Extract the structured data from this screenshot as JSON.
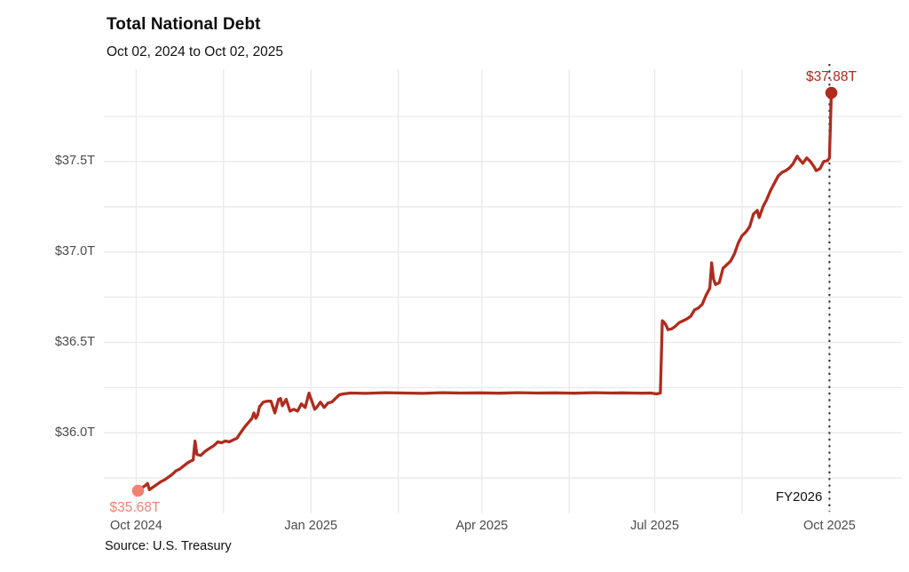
{
  "header": {
    "title": "Total National Debt",
    "subtitle": "Oct 02, 2024 to Oct 02, 2025"
  },
  "footer": {
    "source": "Source: U.S. Treasury"
  },
  "annotations": {
    "start_label": "$35.68T",
    "end_label": "$37.88T",
    "fy_label": "FY2026"
  },
  "colors": {
    "line": "#b02b1d",
    "start_accent": "#ef8372",
    "grid": "#e9e9e9",
    "marker_line": "#2a2a2a",
    "tick_text": "#4a4a4a",
    "text": "#111111"
  },
  "chart_data": {
    "type": "line",
    "title": "Total National Debt",
    "subtitle": "Oct 02, 2024 to Oct 02, 2025",
    "unit": "USD trillions",
    "x_start_date": "2024-10-02",
    "x_end_date": "2025-10-02",
    "xlim_days": [
      0,
      365
    ],
    "ylim": [
      35.55,
      38.01
    ],
    "grid": true,
    "legend": "none",
    "y_ticks": [
      {
        "value": 37.5,
        "label": "$37.5T"
      },
      {
        "value": 37.0,
        "label": "$37.0T"
      },
      {
        "value": 36.5,
        "label": "$36.5T"
      },
      {
        "value": 36.0,
        "label": "$36.0T"
      }
    ],
    "y_gridlines": [
      37.75,
      37.5,
      37.25,
      37.0,
      36.75,
      36.5,
      36.25,
      36.0,
      35.75
    ],
    "x_ticks": [
      {
        "day": -1,
        "label": "Oct 2024"
      },
      {
        "day": 91,
        "label": "Jan 2025"
      },
      {
        "day": 181,
        "label": "Apr 2025"
      },
      {
        "day": 272,
        "label": "Jul 2025"
      },
      {
        "day": 364,
        "label": "Oct 2025"
      }
    ],
    "x_gridline_days": [
      -1,
      45,
      91,
      137,
      181,
      227,
      272,
      318,
      364
    ],
    "start_point": {
      "day": 0,
      "value": 35.68,
      "label": "$35.68T",
      "color": "#ef8372"
    },
    "end_point": {
      "day": 365,
      "value": 37.88,
      "label": "$37.88T",
      "color": "#b02b1d"
    },
    "fy2026_marker": {
      "day": 364,
      "label": "FY2026",
      "style": "dotted"
    },
    "points": [
      [
        0,
        35.68
      ],
      [
        2,
        35.695
      ],
      [
        4,
        35.71
      ],
      [
        5,
        35.72
      ],
      [
        6,
        35.685
      ],
      [
        8,
        35.7
      ],
      [
        10,
        35.715
      ],
      [
        12,
        35.73
      ],
      [
        14,
        35.74
      ],
      [
        16,
        35.755
      ],
      [
        18,
        35.77
      ],
      [
        20,
        35.79
      ],
      [
        22,
        35.8
      ],
      [
        25,
        35.825
      ],
      [
        27,
        35.84
      ],
      [
        29,
        35.85
      ],
      [
        30,
        35.955
      ],
      [
        31,
        35.88
      ],
      [
        33,
        35.875
      ],
      [
        35,
        35.895
      ],
      [
        37,
        35.91
      ],
      [
        40,
        35.93
      ],
      [
        42,
        35.95
      ],
      [
        44,
        35.945
      ],
      [
        46,
        35.955
      ],
      [
        48,
        35.95
      ],
      [
        50,
        35.96
      ],
      [
        52,
        35.97
      ],
      [
        54,
        36.0
      ],
      [
        56,
        36.03
      ],
      [
        58,
        36.055
      ],
      [
        60,
        36.08
      ],
      [
        61,
        36.11
      ],
      [
        62,
        36.08
      ],
      [
        63,
        36.1
      ],
      [
        64,
        36.145
      ],
      [
        66,
        36.17
      ],
      [
        68,
        36.175
      ],
      [
        70,
        36.175
      ],
      [
        72,
        36.11
      ],
      [
        74,
        36.185
      ],
      [
        75,
        36.19
      ],
      [
        76,
        36.15
      ],
      [
        78,
        36.185
      ],
      [
        80,
        36.12
      ],
      [
        82,
        36.13
      ],
      [
        84,
        36.12
      ],
      [
        86,
        36.16
      ],
      [
        88,
        36.14
      ],
      [
        90,
        36.22
      ],
      [
        91,
        36.19
      ],
      [
        92,
        36.16
      ],
      [
        93,
        36.13
      ],
      [
        94,
        36.14
      ],
      [
        96,
        36.17
      ],
      [
        98,
        36.14
      ],
      [
        100,
        36.165
      ],
      [
        102,
        36.17
      ],
      [
        104,
        36.19
      ],
      [
        106,
        36.21
      ],
      [
        108,
        36.215
      ],
      [
        112,
        36.22
      ],
      [
        120,
        36.218
      ],
      [
        130,
        36.222
      ],
      [
        140,
        36.22
      ],
      [
        150,
        36.218
      ],
      [
        160,
        36.222
      ],
      [
        170,
        36.22
      ],
      [
        180,
        36.221
      ],
      [
        190,
        36.219
      ],
      [
        200,
        36.222
      ],
      [
        210,
        36.22
      ],
      [
        220,
        36.221
      ],
      [
        230,
        36.219
      ],
      [
        240,
        36.222
      ],
      [
        250,
        36.22
      ],
      [
        255,
        36.221
      ],
      [
        260,
        36.22
      ],
      [
        265,
        36.219
      ],
      [
        270,
        36.22
      ],
      [
        273,
        36.215
      ],
      [
        275,
        36.22
      ],
      [
        276,
        36.62
      ],
      [
        277,
        36.61
      ],
      [
        278,
        36.595
      ],
      [
        279,
        36.57
      ],
      [
        281,
        36.575
      ],
      [
        283,
        36.59
      ],
      [
        285,
        36.61
      ],
      [
        287,
        36.62
      ],
      [
        289,
        36.63
      ],
      [
        291,
        36.645
      ],
      [
        293,
        36.68
      ],
      [
        295,
        36.69
      ],
      [
        297,
        36.71
      ],
      [
        299,
        36.76
      ],
      [
        301,
        36.8
      ],
      [
        302,
        36.94
      ],
      [
        303,
        36.85
      ],
      [
        304,
        36.82
      ],
      [
        306,
        36.83
      ],
      [
        308,
        36.91
      ],
      [
        310,
        36.93
      ],
      [
        312,
        36.95
      ],
      [
        314,
        36.99
      ],
      [
        316,
        37.05
      ],
      [
        318,
        37.09
      ],
      [
        320,
        37.11
      ],
      [
        322,
        37.14
      ],
      [
        324,
        37.21
      ],
      [
        326,
        37.23
      ],
      [
        327,
        37.19
      ],
      [
        329,
        37.25
      ],
      [
        331,
        37.29
      ],
      [
        333,
        37.34
      ],
      [
        335,
        37.38
      ],
      [
        337,
        37.42
      ],
      [
        339,
        37.44
      ],
      [
        341,
        37.45
      ],
      [
        343,
        37.465
      ],
      [
        345,
        37.49
      ],
      [
        347,
        37.53
      ],
      [
        348,
        37.515
      ],
      [
        350,
        37.49
      ],
      [
        352,
        37.52
      ],
      [
        354,
        37.5
      ],
      [
        356,
        37.47
      ],
      [
        357,
        37.45
      ],
      [
        359,
        37.46
      ],
      [
        361,
        37.5
      ],
      [
        363,
        37.505
      ],
      [
        364,
        37.52
      ],
      [
        365,
        37.88
      ]
    ]
  }
}
